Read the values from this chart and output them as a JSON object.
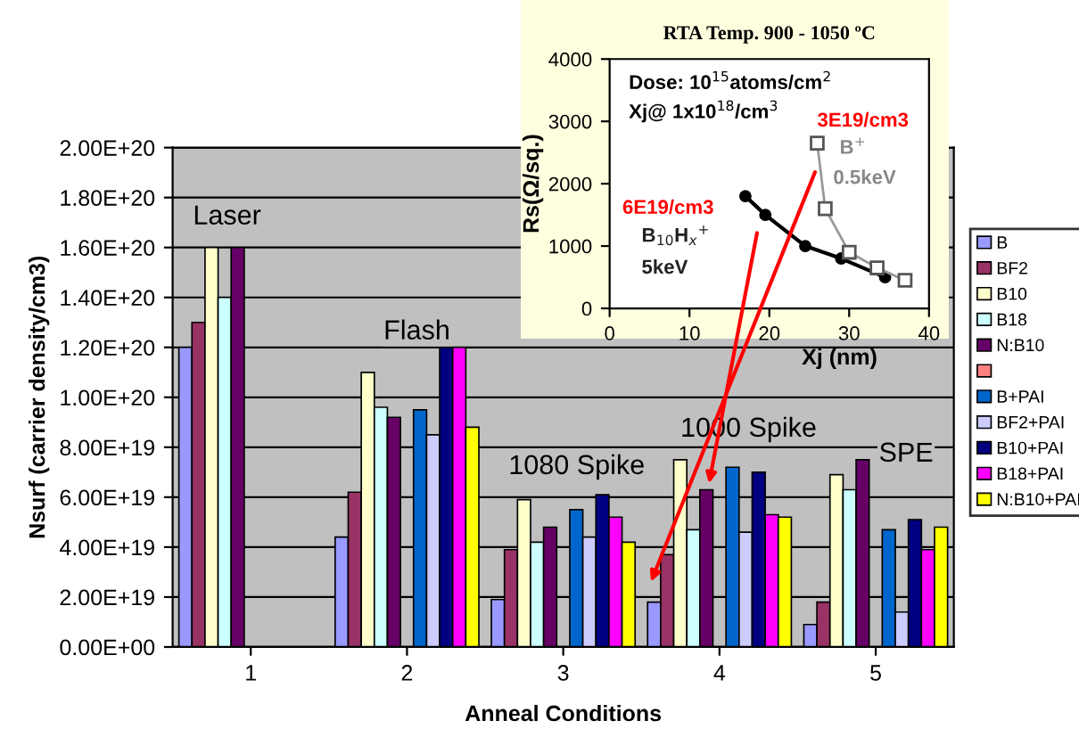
{
  "chart_data": [
    {
      "type": "bar",
      "xlabel": "Anneal Conditions",
      "ylabel": "Nsurf (carrier density/cm3)",
      "categories": [
        "1",
        "2",
        "3",
        "4",
        "5"
      ],
      "series": [
        {
          "name": "B",
          "color": "#9999ff",
          "values": [
            1.2e+20,
            4.4e+19,
            1.9e+19,
            1.8e+19,
            9e+18
          ]
        },
        {
          "name": "BF2",
          "color": "#993366",
          "values": [
            1.3e+20,
            6.2e+19,
            3.9e+19,
            3.7e+19,
            1.8e+19
          ]
        },
        {
          "name": "B10",
          "color": "#ffffcc",
          "values": [
            1.6e+20,
            1.1e+20,
            5.9e+19,
            7.5e+19,
            6.9e+19
          ]
        },
        {
          "name": "B18",
          "color": "#ccffff",
          "values": [
            1.4e+20,
            9.6e+19,
            4.2e+19,
            4.7e+19,
            6.3e+19
          ]
        },
        {
          "name": "N:B10",
          "color": "#660066",
          "values": [
            1.6e+20,
            9.2e+19,
            4.8e+19,
            6.3e+19,
            7.5e+19
          ]
        },
        {
          "color": "#ff8080",
          "values": [
            null,
            null,
            null,
            null,
            null
          ]
        },
        {
          "name": "B+PAI",
          "color": "#0066cc",
          "values": [
            null,
            9.5e+19,
            5.5e+19,
            7.2e+19,
            4.7e+19
          ]
        },
        {
          "name": "BF2+PAI",
          "color": "#ccccff",
          "values": [
            null,
            8.5e+19,
            4.4e+19,
            4.6e+19,
            1.4e+19
          ]
        },
        {
          "name": "B10+PAI",
          "color": "#000080",
          "values": [
            null,
            1.2e+20,
            6.1e+19,
            7e+19,
            5.1e+19
          ]
        },
        {
          "name": "B18+PAI",
          "color": "#ff00ff",
          "values": [
            null,
            1.2e+20,
            5.2e+19,
            5.3e+19,
            3.9e+19
          ]
        },
        {
          "name": "N:B10+PAI",
          "color": "#ffff00",
          "values": [
            null,
            8.8e+19,
            4.2e+19,
            5.2e+19,
            4.8e+19
          ]
        }
      ],
      "ylim": [
        0,
        2e+20
      ],
      "yticks": [
        {
          "value": 0,
          "label": "0.00E+00"
        },
        {
          "value": 2e+19,
          "label": "2.00E+19"
        },
        {
          "value": 4e+19,
          "label": "4.00E+19"
        },
        {
          "value": 6e+19,
          "label": "6.00E+19"
        },
        {
          "value": 8e+19,
          "label": "8.00E+19"
        },
        {
          "value": 1e+20,
          "label": "1.00E+20"
        },
        {
          "value": 1.2e+20,
          "label": "1.20E+20"
        },
        {
          "value": 1.4e+20,
          "label": "1.40E+20"
        },
        {
          "value": 1.6e+20,
          "label": "1.60E+20"
        },
        {
          "value": 1.8e+20,
          "label": "1.80E+20"
        },
        {
          "value": 2e+20,
          "label": "2.00E+20"
        }
      ],
      "annotations": [
        "Laser",
        "Flash",
        "1080 Spike",
        "1000 Spike",
        "SPE"
      ],
      "grid": "y",
      "legend": "right"
    },
    {
      "type": "line",
      "title": "RTA Temp. 900 - 1050 ºC",
      "xlabel": "Xj (nm)",
      "ylabel": "Rs(Ω/sq.)",
      "series": [
        {
          "color": "#000000",
          "marker": "circle",
          "x": [
            17,
            19.5,
            24.5,
            29,
            34.5
          ],
          "values": [
            1800,
            1500,
            1000,
            800,
            500
          ]
        },
        {
          "color": "#999999",
          "marker": "square",
          "x": [
            26,
            27,
            30,
            33.5,
            37
          ],
          "values": [
            2650,
            1600,
            900,
            650,
            450
          ]
        }
      ],
      "xlim": [
        0,
        40
      ],
      "xticks": [
        0,
        10,
        20,
        30,
        40
      ],
      "ylim": [
        0,
        4000
      ],
      "yticks": [
        0,
        1000,
        2000,
        3000,
        4000
      ],
      "annotations": [
        "Dose: 10$^{15}$atoms/cm$^{2}$",
        "Xj@ 1x10$^{18}$/cm$^{3}$",
        "3E19/cm3",
        "6E19/cm3",
        "B$^{+}$",
        "0.5keV",
        "B$_{10}$H$_{x}$$^{+}$",
        "5keV"
      ]
    }
  ]
}
